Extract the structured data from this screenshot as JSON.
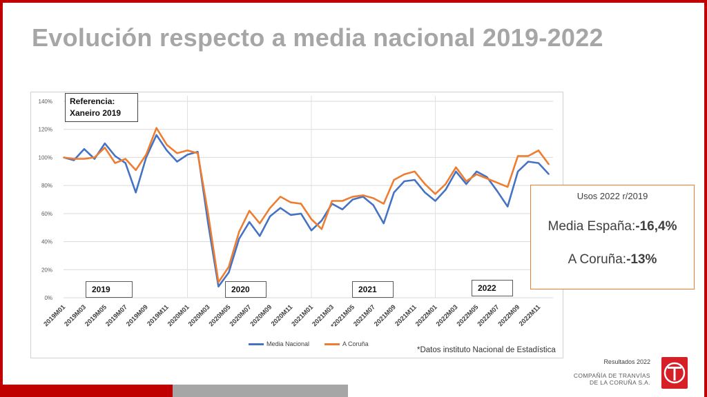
{
  "title": "Evolución respecto a media nacional 2019-2022",
  "reference": {
    "line1": "Referencia:",
    "line2": "Xaneiro 2019"
  },
  "year_labels": [
    "2019",
    "2020",
    "2021",
    "2022"
  ],
  "source_note": "*Datos instituto Nacional de Estadística",
  "summary": {
    "title": "Usos 2022 r/2019",
    "line1_label": "Media España:",
    "line1_value": "-16,4%",
    "line2_label": "A Coruña:",
    "line2_value": "-13%"
  },
  "footer": {
    "results": "Resultados 2022",
    "company_line1": "COMPAÑÍA DE TRANVÍAS",
    "company_line2": "DE LA CORUÑA S.A."
  },
  "colors": {
    "accent_red": "#c00000",
    "series_blue": "#4472c4",
    "series_orange": "#ed7d31",
    "title_gray": "#a6a6a6"
  },
  "chart_data": {
    "type": "line",
    "categories": [
      "2019M01",
      "2019M02",
      "2019M03",
      "2019M04",
      "2019M05",
      "2019M06",
      "2019M07",
      "2019M08",
      "2019M09",
      "2019M10",
      "2019M11",
      "2019M12",
      "2020M01",
      "2020M02",
      "2020M03",
      "2020M04",
      "2020M05",
      "2020M06",
      "2020M07",
      "2020M08",
      "2020M09",
      "2020M10",
      "2020M11",
      "2020M12",
      "2021M01",
      "2021M02",
      "2021M03",
      "2021M04",
      "2021M05",
      "2021M06",
      "2021M07",
      "2021M08",
      "2021M09",
      "2021M10",
      "2021M11",
      "2021M12",
      "2022M01",
      "2022M02",
      "2022M03",
      "2022M04",
      "2022M05",
      "2022M06",
      "2022M07",
      "2022M08",
      "2022M09",
      "2022M10",
      "2022M11",
      "2022M12"
    ],
    "tick_labels": [
      "2019M01",
      "2019M03",
      "2019M05",
      "2019M07",
      "2019M09",
      "2019M11",
      "2020M01",
      "2020M03",
      "2020M05",
      "2020M07",
      "2020M09",
      "2020M11",
      "2021M01",
      "2021M03",
      "*2021M05",
      "2021M07",
      "2021M09",
      "2021M11",
      "2022M01",
      "2022M03",
      "2022M05",
      "2022M07",
      "2022M09",
      "2022M11"
    ],
    "series": [
      {
        "name": "Media Nacional",
        "color": "#4472c4",
        "values": [
          100,
          98,
          106,
          99,
          110,
          101,
          96,
          75,
          100,
          116,
          105,
          97,
          102,
          104,
          53,
          8,
          18,
          42,
          54,
          44,
          58,
          64,
          59,
          60,
          48,
          55,
          67,
          63,
          70,
          72,
          66,
          53,
          75,
          83,
          84,
          75,
          69,
          77,
          90,
          81,
          90,
          86,
          76,
          65,
          90,
          97,
          96,
          88
        ]
      },
      {
        "name": "A Coruña",
        "color": "#ed7d31",
        "values": [
          100,
          99,
          99,
          100,
          107,
          96,
          99,
          91,
          102,
          121,
          109,
          103,
          105,
          103,
          60,
          11,
          22,
          47,
          62,
          53,
          64,
          72,
          68,
          67,
          56,
          49,
          69,
          69,
          72,
          73,
          71,
          67,
          84,
          88,
          90,
          81,
          74,
          81,
          93,
          83,
          88,
          85,
          82,
          79,
          101,
          101,
          105,
          95
        ]
      }
    ],
    "ylim": [
      0,
      140
    ],
    "y_ticks": [
      "0%",
      "20%",
      "40%",
      "60%",
      "80%",
      "100%",
      "120%",
      "140%"
    ],
    "grid": "horizontal + yearly vertical",
    "legend": "bottom-center"
  }
}
